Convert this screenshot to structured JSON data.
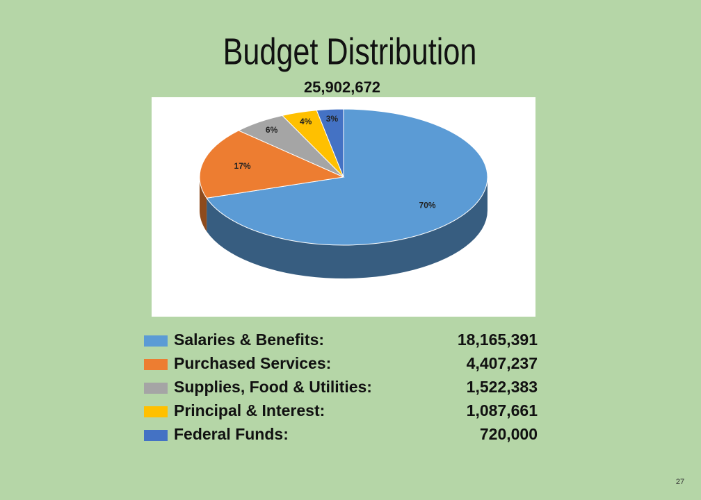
{
  "chart_data": {
    "type": "pie",
    "title": "Budget Distribution",
    "subtitle": "25,902,672",
    "categories": [
      "Salaries & Benefits:",
      "Purchased Services:",
      "Supplies, Food & Utilities:",
      "Principal & Interest:",
      "Federal Funds:"
    ],
    "values": [
      70,
      17,
      6,
      4,
      3
    ],
    "value_labels": [
      "70%",
      "17%",
      "6%",
      "4%",
      "3%"
    ],
    "amounts": [
      "18,165,391",
      "4,407,237",
      "1,522,383",
      "1,087,661",
      "720,000"
    ],
    "colors": [
      "#5b9bd5",
      "#ed7d31",
      "#a5a5a5",
      "#ffc000",
      "#4472c4"
    ]
  },
  "page_number": "27"
}
